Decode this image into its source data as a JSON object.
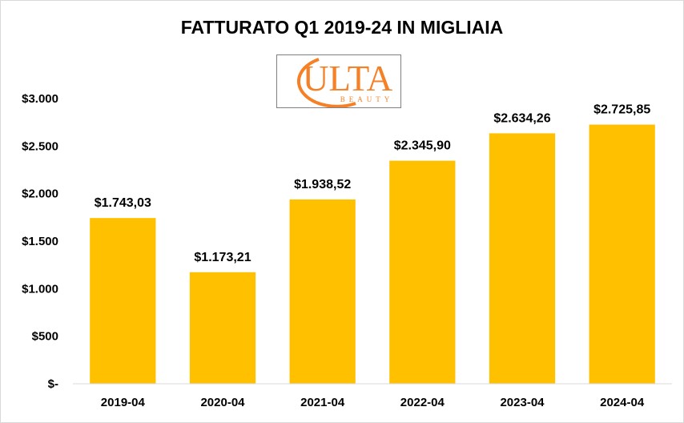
{
  "chart_data": {
    "type": "bar",
    "title": "FATTURATO Q1 2019-24 IN MIGLIAIA",
    "categories": [
      "2019-04",
      "2020-04",
      "2021-04",
      "2022-04",
      "2023-04",
      "2024-04"
    ],
    "values": [
      1743.03,
      1173.21,
      1938.52,
      2345.9,
      2634.26,
      2725.85
    ],
    "data_labels": [
      "$1.743,03",
      "$1.173,21",
      "$1.938,52",
      "$2.345,90",
      "$2.634,26",
      "$2.725,85"
    ],
    "ylim": [
      0,
      3000
    ],
    "yticks": [
      0,
      500,
      1000,
      1500,
      2000,
      2500,
      3000
    ],
    "ytick_labels": [
      "$-",
      "$500",
      "$1.000",
      "$1.500",
      "$2.000",
      "$2.500",
      "$3.000"
    ],
    "bar_color": "#FFC000",
    "grid": false,
    "legend": "none"
  },
  "logo": {
    "text": "ULTA",
    "subtext": "BEAUTY",
    "color": "#F58025"
  }
}
